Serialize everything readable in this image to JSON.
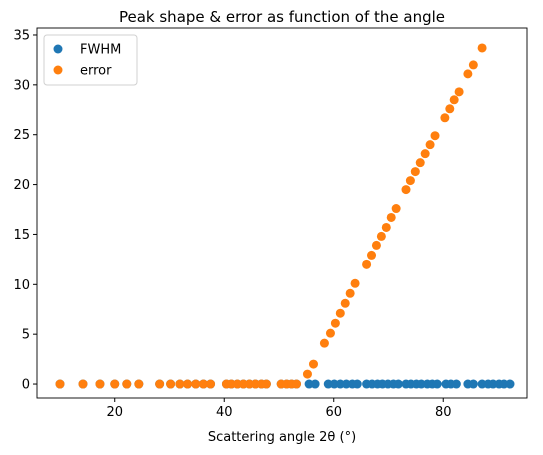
{
  "chart_data": {
    "type": "scatter",
    "title": "Peak shape & error as function of the angle",
    "x_label": "Scattering angle 2θ (°)",
    "xlim": [
      5.8,
      95.3
    ],
    "ylim": [
      -1.4,
      35.7
    ],
    "xticks": [
      20,
      40,
      60,
      80
    ],
    "yticks": [
      0,
      5,
      10,
      15,
      20,
      25,
      30,
      35
    ],
    "legend": "upper-left",
    "grid": false,
    "series": [
      {
        "name": "FWHM",
        "color": "#1f77b4",
        "x": [
          10.0,
          14.2,
          17.3,
          20.0,
          22.2,
          24.4,
          28.2,
          30.2,
          31.9,
          33.3,
          34.8,
          36.2,
          37.5,
          40.4,
          41.3,
          42.4,
          43.5,
          44.6,
          45.7,
          46.8,
          47.7,
          50.4,
          51.4,
          52.3,
          53.2,
          55.5,
          56.6,
          59.0,
          60.1,
          61.2,
          62.3,
          63.4,
          64.3,
          66.0,
          67.0,
          68.0,
          68.9,
          69.9,
          70.9,
          71.8,
          73.2,
          74.1,
          75.1,
          76.0,
          77.1,
          78.0,
          78.9,
          80.5,
          81.4,
          82.4,
          84.5,
          85.5,
          87.1,
          88.2,
          89.1,
          90.2,
          91.1,
          92.2
        ],
        "values": [
          0,
          0,
          0,
          0,
          0,
          0,
          0,
          0,
          0,
          0,
          0,
          0,
          0,
          0,
          0,
          0,
          0,
          0,
          0,
          0,
          0,
          0,
          0,
          0,
          0,
          0,
          0,
          0,
          0,
          0,
          0,
          0,
          0,
          0,
          0,
          0,
          0,
          0,
          0,
          0,
          0,
          0,
          0,
          0,
          0,
          0,
          0,
          0,
          0,
          0,
          0,
          0,
          0,
          0,
          0,
          0,
          0,
          0
        ]
      },
      {
        "name": "error",
        "color": "#ff7f0e",
        "x": [
          10.0,
          14.2,
          17.3,
          20.0,
          22.2,
          24.4,
          28.2,
          30.2,
          31.9,
          33.3,
          34.8,
          36.2,
          37.5,
          40.4,
          41.3,
          42.4,
          43.5,
          44.6,
          45.7,
          46.8,
          47.7,
          50.4,
          51.4,
          52.3,
          53.2,
          55.2,
          56.3,
          58.3,
          59.4,
          60.3,
          61.2,
          62.1,
          63.0,
          63.9,
          66.0,
          66.9,
          67.8,
          68.7,
          69.6,
          70.5,
          71.4,
          73.2,
          74.0,
          74.9,
          75.8,
          76.7,
          77.6,
          78.5,
          80.3,
          81.2,
          82.0,
          82.9,
          84.5,
          85.5,
          87.1
        ],
        "values": [
          0,
          0,
          0,
          0,
          0,
          0,
          0,
          0,
          0,
          0,
          0,
          0,
          0,
          0,
          0,
          0,
          0,
          0,
          0,
          0,
          0,
          0,
          0,
          0,
          0,
          1.0,
          2.0,
          4.1,
          5.1,
          6.1,
          7.1,
          8.1,
          9.1,
          10.1,
          12.0,
          12.9,
          13.9,
          14.8,
          15.7,
          16.7,
          17.6,
          19.5,
          20.4,
          21.3,
          22.2,
          23.1,
          24.0,
          24.9,
          26.7,
          27.6,
          28.5,
          29.3,
          31.1,
          32.0,
          33.7
        ]
      }
    ]
  }
}
